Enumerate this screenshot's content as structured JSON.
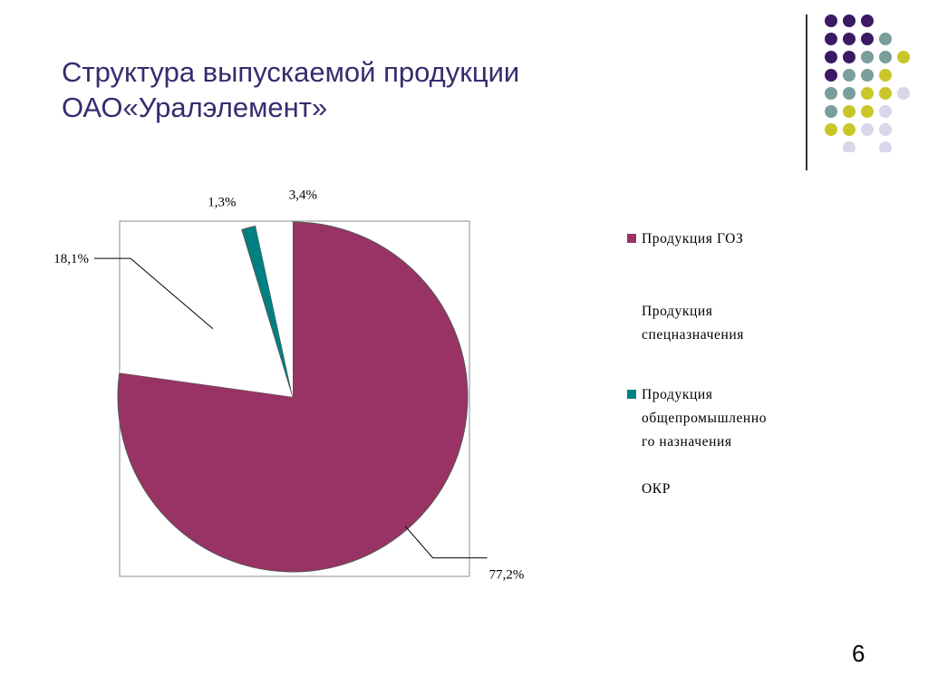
{
  "slide": {
    "title_line1": "Структура выпускаемой продукции",
    "title_line2": "ОАО«Уралэлемент»",
    "page_number": "6"
  },
  "decor": {
    "dot_colors": {
      "purple": "#3b1a63",
      "teal": "#7a9e9c",
      "olive": "#c9c62a",
      "lavender": "#d9d7ea"
    },
    "rows": [
      [
        "",
        "purple",
        "purple",
        "purple",
        "",
        ""
      ],
      [
        "",
        "purple",
        "purple",
        "purple",
        "teal",
        ""
      ],
      [
        "",
        "purple",
        "purple",
        "teal",
        "teal",
        "olive"
      ],
      [
        "",
        "purple",
        "teal",
        "teal",
        "olive",
        ""
      ],
      [
        "",
        "teal",
        "teal",
        "olive",
        "olive",
        "lavender"
      ],
      [
        "",
        "teal",
        "olive",
        "olive",
        "lavender",
        ""
      ],
      [
        "",
        "olive",
        "olive",
        "lavender",
        "lavender",
        ""
      ],
      [
        "",
        "",
        "lavender",
        "",
        "lavender",
        ""
      ]
    ]
  },
  "chart_data": {
    "type": "pie",
    "title": "",
    "slices": [
      {
        "label": "Продукция ГОЗ",
        "value": 77.2,
        "data_label": "77,2%",
        "color": "#993366",
        "legend_lines": [
          "Продукция ГОЗ"
        ]
      },
      {
        "label": "Продукция спецназначения",
        "value": 18.1,
        "data_label": "18,1%",
        "color": "#ffffff",
        "legend_lines": [
          "Продукция",
          "спецназначения"
        ]
      },
      {
        "label": "Продукция общепромышленного назначения",
        "value": 1.3,
        "data_label": "1,3%",
        "color": "#008080",
        "legend_lines": [
          "Продукция",
          "общепромышленно",
          "го назначения"
        ]
      },
      {
        "label": "ОКР",
        "value": 3.4,
        "data_label": "3,4%",
        "color": "#ffffff",
        "legend_lines": [
          "ОКР"
        ]
      }
    ],
    "legend_position": "right"
  }
}
